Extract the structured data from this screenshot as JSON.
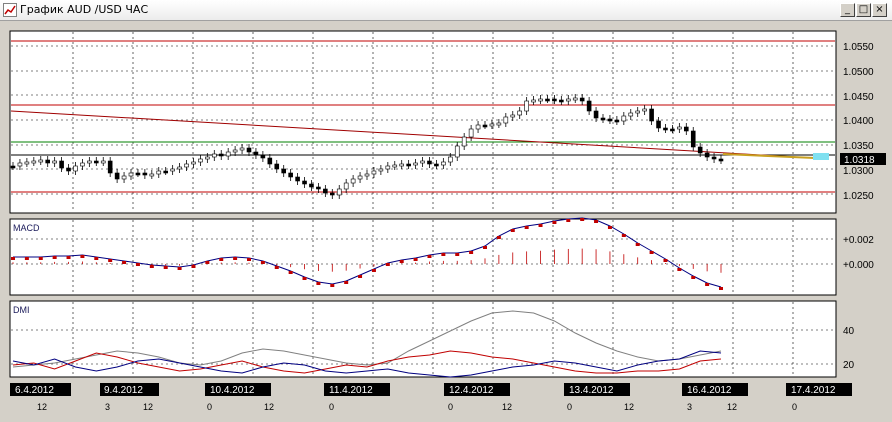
{
  "window": {
    "title": "График AUD /USD  ЧАС",
    "min_glyph": "_",
    "max_glyph": "□",
    "close_glyph": "×"
  },
  "price_panel": {
    "axis_labels": [
      "1.0550",
      "1.0500",
      "1.0450",
      "1.0400",
      "1.0350",
      "1.0300",
      "1.0250"
    ],
    "current_price": "1.0318",
    "colors": {
      "resistance": "#c00000",
      "support_green": "#008000",
      "trend": "#a00000",
      "current_box": "#000000"
    }
  },
  "macd_panel": {
    "label": "MACD",
    "axis_labels": [
      "+0.002",
      "+0.000"
    ]
  },
  "dmi_panel": {
    "label": "DMI",
    "axis_labels": [
      "40",
      "20"
    ]
  },
  "time_axis": {
    "dates": [
      "6.4.2012",
      "9.4.2012",
      "10.4.2012",
      "11.4.2012",
      "12.4.2012",
      "13.4.2012",
      "16.4.2012",
      "17.4.2012"
    ],
    "hours": [
      "12",
      "3",
      "12",
      "0",
      "12",
      "0",
      "0",
      "12",
      "0",
      "12",
      "3",
      "12",
      "0"
    ]
  }
}
